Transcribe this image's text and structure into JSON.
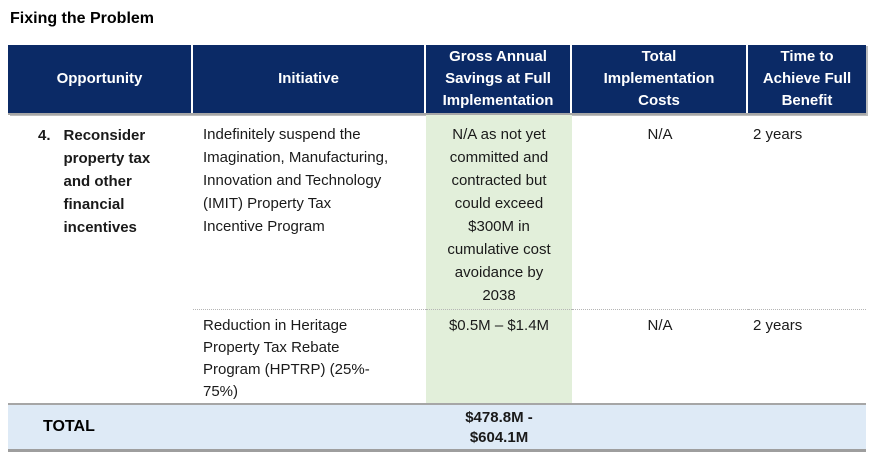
{
  "page": {
    "title": "Fixing the Problem"
  },
  "colors": {
    "header_bg": "#0B2A66",
    "header_text": "#FFFFFF",
    "savings_bg": "#E2EFDA",
    "total_bg": "#DEEAF6",
    "border_gray": "#A6A6A6",
    "body_text": "#1A1A1A"
  },
  "table": {
    "headers": [
      {
        "label": "Opportunity"
      },
      {
        "label": "Initiative"
      },
      {
        "label": "Gross Annual\nSavings at Full\nImplementation"
      },
      {
        "label": "Total\nImplementation\nCosts"
      },
      {
        "label": "Time to\nAchieve Full\nBenefit"
      }
    ],
    "rows": [
      {
        "opportunity_number": "4.",
        "opportunity": "Reconsider\nproperty tax\nand other\nfinancial\nincentives",
        "initiative": "Indefinitely suspend the\nImagination, Manufacturing,\nInnovation and Technology\n(IMIT) Property Tax\nIncentive Program",
        "savings": "N/A as not yet\ncommitted and\ncontracted but\ncould exceed\n$300M in\ncumulative cost\navoidance by\n2038",
        "costs": "N/A",
        "time": "2 years"
      },
      {
        "opportunity_number": "",
        "opportunity": "",
        "initiative": "Reduction in Heritage\nProperty Tax Rebate\nProgram (HPTRP) (25%-\n75%)",
        "savings": "$0.5M – $1.4M",
        "costs": "N/A",
        "time": "2 years"
      }
    ],
    "total": {
      "label": "TOTAL",
      "savings": "$478.8M -\n$604.1M"
    }
  }
}
